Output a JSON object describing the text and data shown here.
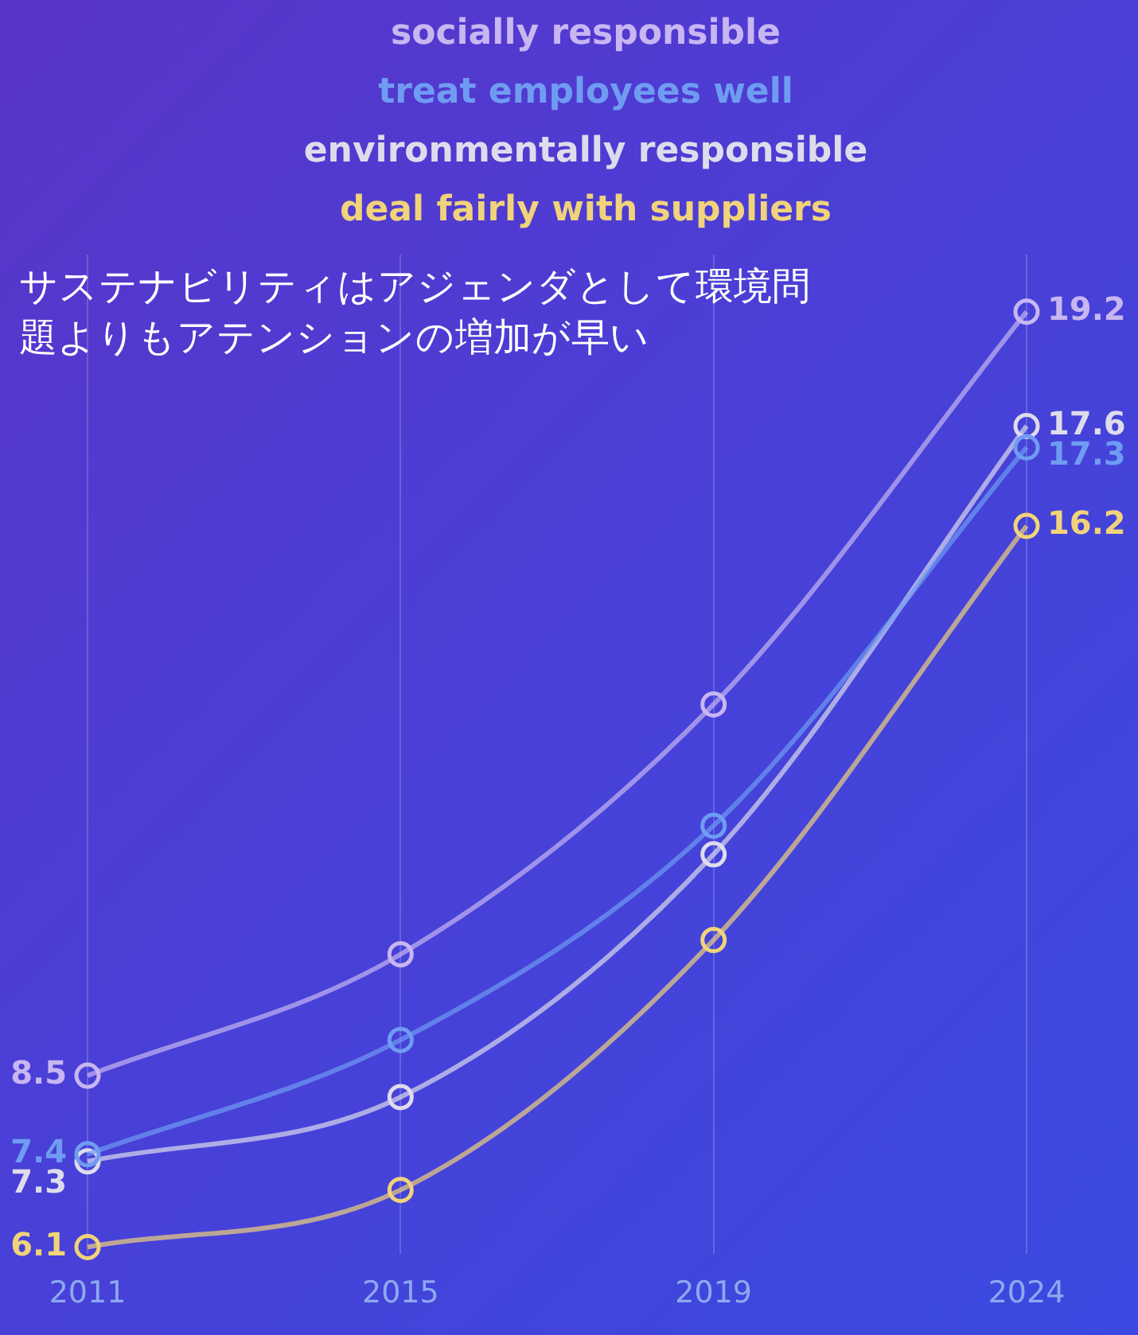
{
  "chart_data": {
    "type": "line",
    "categories": [
      "2011",
      "2015",
      "2019",
      "2024"
    ],
    "series": [
      {
        "name": "socially responsible",
        "color": "#c8b6f2",
        "values": [
          8.5,
          10.2,
          13.7,
          19.2
        ],
        "value_labels": [
          "8.5",
          null,
          null,
          "19.2"
        ]
      },
      {
        "name": "treat employees well",
        "color": "#6f9cf2",
        "values": [
          7.4,
          9.0,
          12.0,
          17.3
        ],
        "value_labels": [
          "7.4",
          null,
          null,
          "17.3"
        ]
      },
      {
        "name": "environmentally responsible",
        "color": "#dedcec",
        "values": [
          7.3,
          8.2,
          11.6,
          17.6
        ],
        "value_labels": [
          "7.3",
          null,
          null,
          "17.6"
        ]
      },
      {
        "name": "deal fairly with suppliers",
        "color": "#f0d37a",
        "values": [
          6.1,
          6.9,
          10.4,
          16.2
        ],
        "value_labels": [
          "6.1",
          null,
          null,
          "16.2"
        ]
      }
    ],
    "annotations": [
      "サステナビリティはアジェンダとして環境問題よりもアテンションの増加が早い"
    ],
    "grid": "x",
    "legend": "top",
    "marker": "circle",
    "line_style": "solid",
    "tick_labels": "x"
  }
}
